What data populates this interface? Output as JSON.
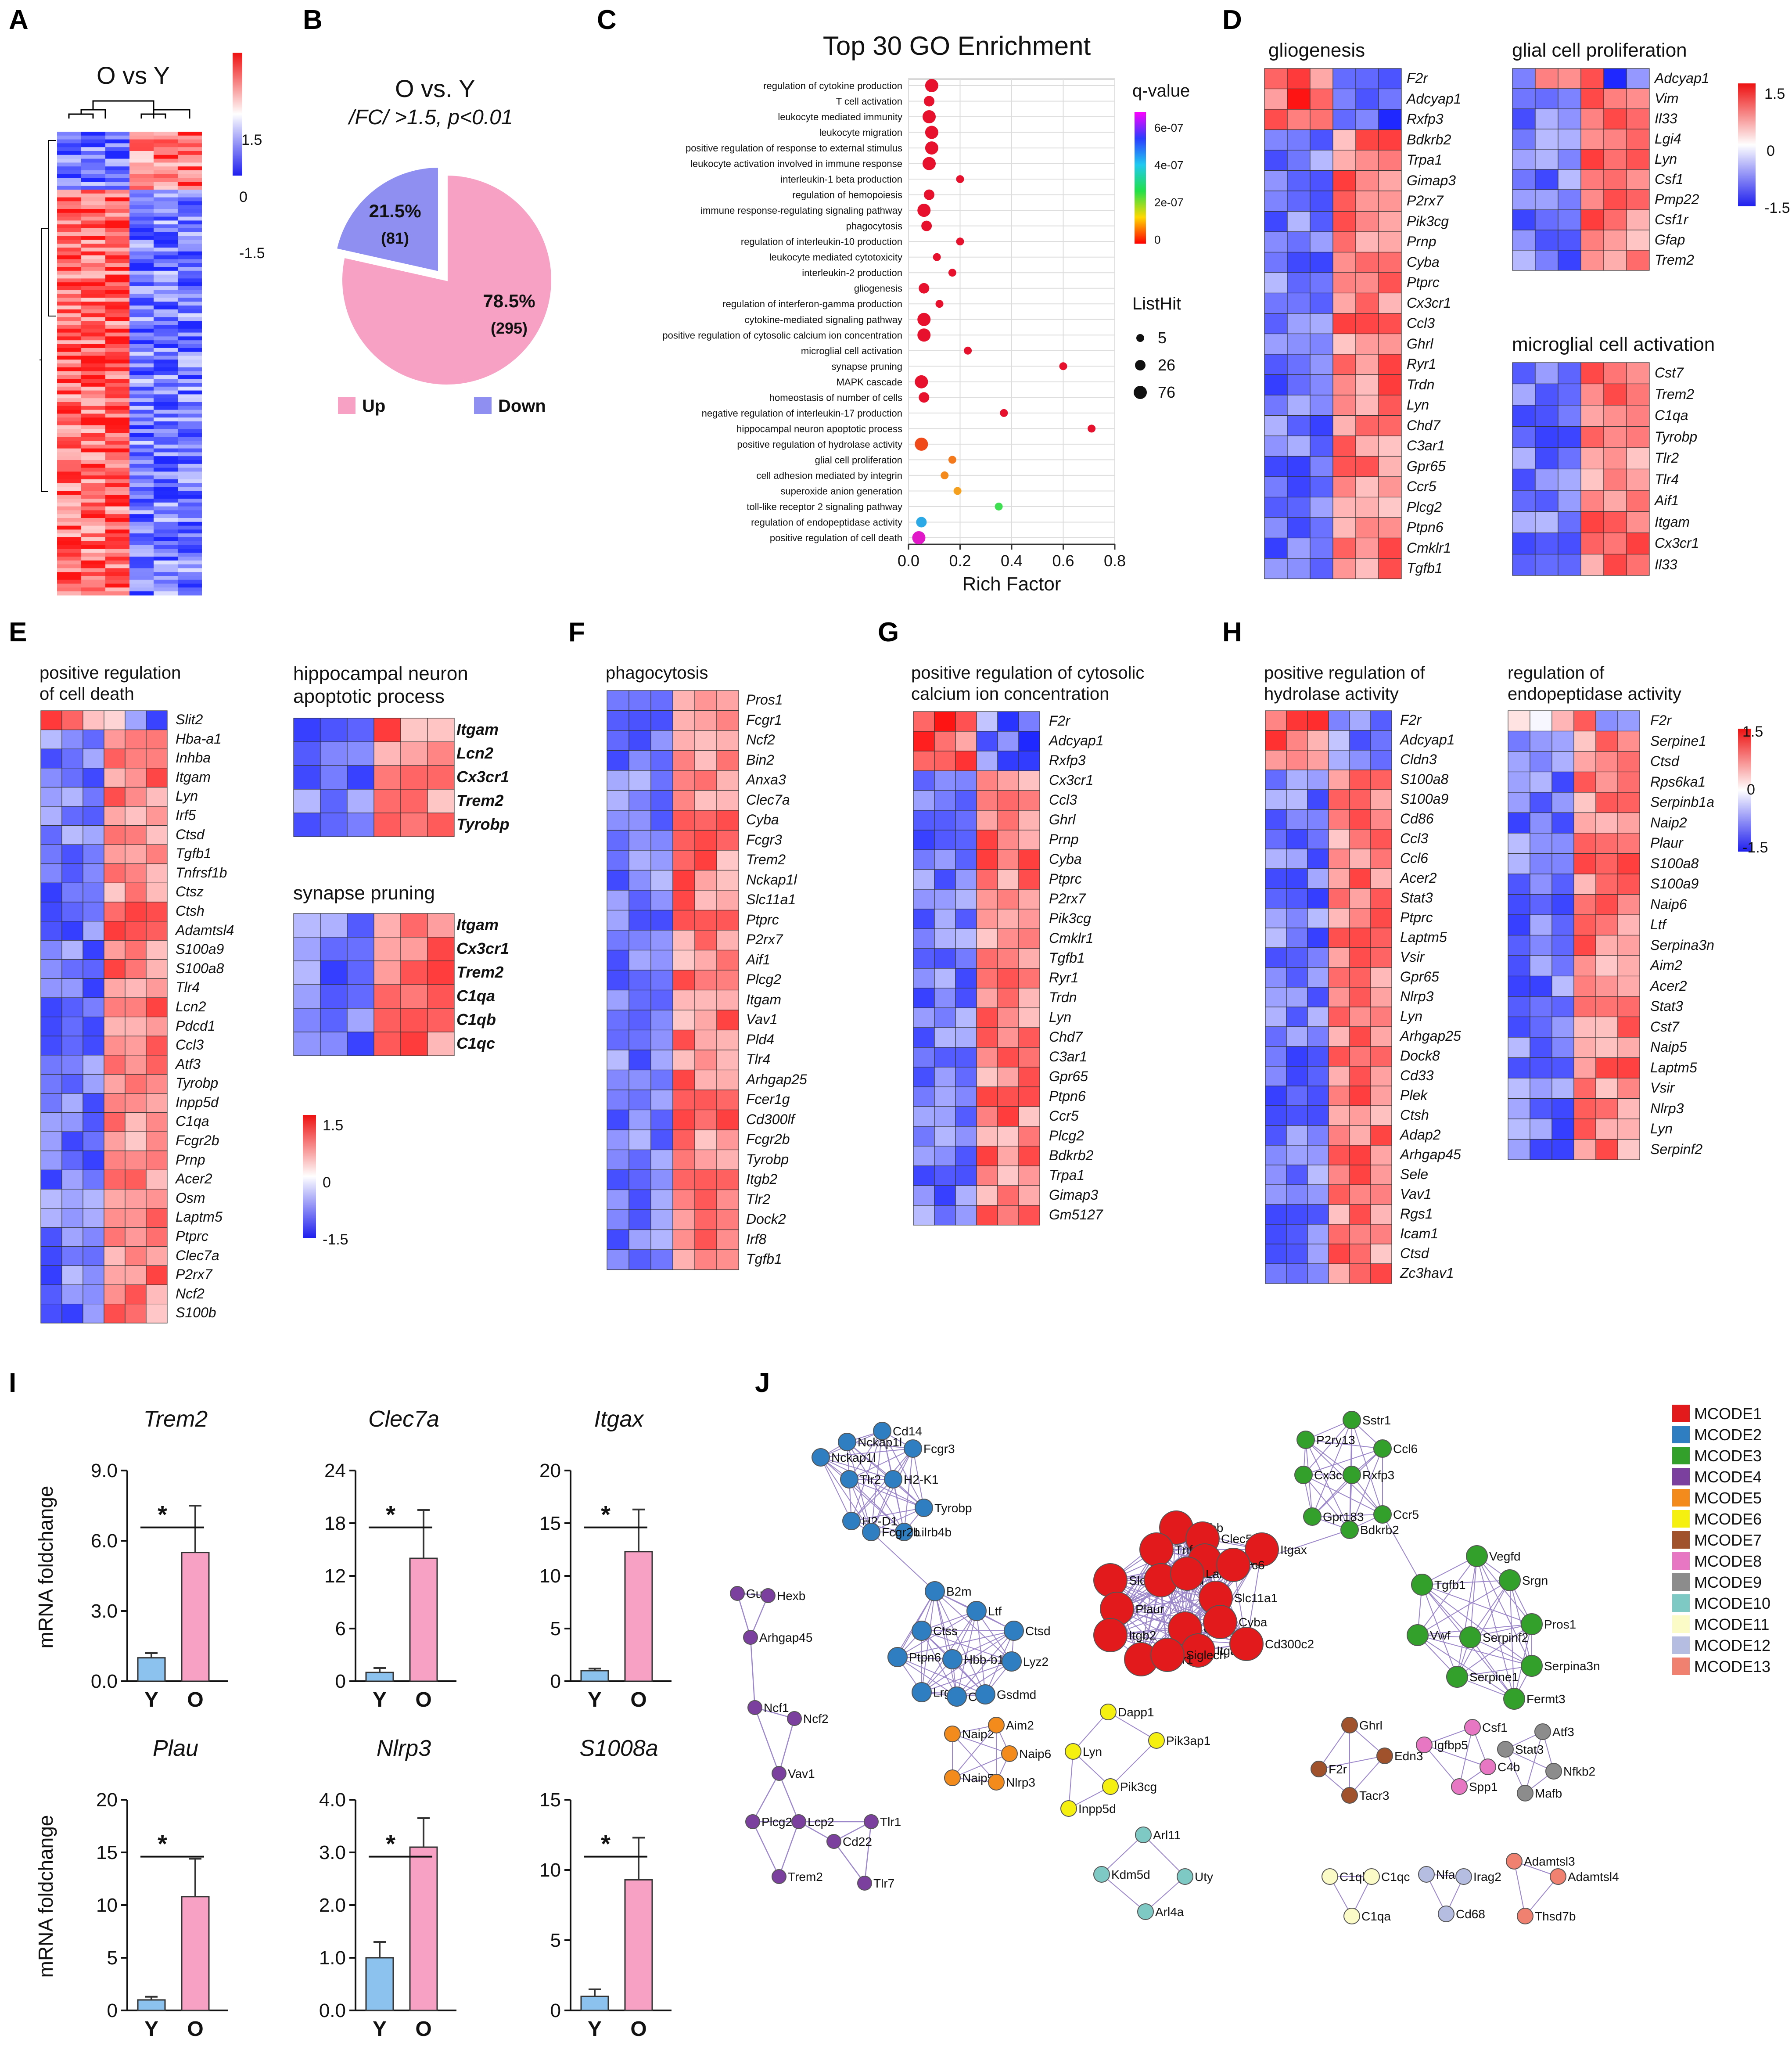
{
  "panel_labels": [
    "A",
    "B",
    "C",
    "D",
    "E",
    "F",
    "G",
    "H",
    "I",
    "J"
  ],
  "panel_a": {
    "title": "O vs Y",
    "scale": [
      "1.5",
      "0",
      "-1.5"
    ]
  },
  "panel_b": {
    "title": "O vs. Y",
    "subtitle": "/FC/ >1.5, p<0.01",
    "legend_up": "Up",
    "legend_down": "Down",
    "colors": {
      "up": "#f7a1c4",
      "down": "#8f8ff2"
    }
  },
  "chart_data": {
    "type": "scatter",
    "title": "Top 30 GO Enrichment",
    "xlabel": "Rich Factor",
    "xlim": [
      0,
      0.8
    ],
    "xticks": [
      "0.0",
      "0.2",
      "0.4",
      "0.6",
      "0.8"
    ],
    "color_legend_title": "q-value",
    "color_ticks": [
      "6e-07",
      "4e-07",
      "2e-07",
      "0"
    ],
    "size_legend_title": "ListHit",
    "size_legend": [
      "5",
      "26",
      "76"
    ],
    "categories": [
      "regulation of cytokine production",
      "T cell activation",
      "leukocyte mediated immunity",
      "leukocyte migration",
      "positive regulation of response to external stimulus",
      "leukocyte activation involved in immune response",
      "interleukin-1 beta production",
      "regulation of hemopoiesis",
      "immune response-regulating signaling pathway",
      "phagocytosis",
      "regulation of interleukin-10 production",
      "leukocyte mediated cytotoxicity",
      "interleukin-2 production",
      "gliogenesis",
      "regulation of interferon-gamma production",
      "cytokine-mediated signaling pathway",
      "positive regulation of cytosolic calcium ion concentration",
      "microglial cell activation",
      "synapse pruning",
      "MAPK cascade",
      "homeostasis of number of cells",
      "negative regulation of interleukin-17 production",
      "hippocampal neuron apoptotic process",
      "positive regulation of hydrolase activity",
      "glial cell proliferation",
      "cell adhesion mediated by integrin",
      "superoxide anion generation",
      "toll-like receptor 2 signaling pathway",
      "regulation of endopeptidase activity",
      "positive regulation of cell death"
    ],
    "series": [
      {
        "rich_factor": [
          0.09,
          0.08,
          0.08,
          0.09,
          0.09,
          0.08,
          0.2,
          0.08,
          0.06,
          0.07,
          0.2,
          0.11,
          0.17,
          0.06,
          0.12,
          0.06,
          0.06,
          0.23,
          0.6,
          0.05,
          0.06,
          0.37,
          0.71,
          0.05,
          0.17,
          0.14,
          0.19,
          0.35,
          0.05,
          0.04
        ],
        "colors": [
          "#e8112d",
          "#e8112d",
          "#e8112d",
          "#e8112d",
          "#e8112d",
          "#e8112d",
          "#e8112d",
          "#e8112d",
          "#e8112d",
          "#e8112d",
          "#e8112d",
          "#e8112d",
          "#e8112d",
          "#e8112d",
          "#e8112d",
          "#e8112d",
          "#e8112d",
          "#e8112d",
          "#e8112d",
          "#e8112d",
          "#e8112d",
          "#e8112d",
          "#e8112d",
          "#f04a1a",
          "#f4781c",
          "#f48a1c",
          "#f5a01e",
          "#3ee051",
          "#2aa9e6",
          "#e018c8"
        ],
        "sizes": [
          "lg",
          "md",
          "lg",
          "lg",
          "lg",
          "lg",
          "sm",
          "md",
          "lg",
          "md",
          "sm",
          "sm",
          "sm",
          "md",
          "sm",
          "lg",
          "lg",
          "sm",
          "sm",
          "lg",
          "md",
          "sm",
          "sm",
          "lg",
          "sm",
          "sm",
          "sm",
          "sm",
          "md",
          "lg"
        ]
      }
    ]
  },
  "panel_d": {
    "gliogenesis": {
      "title": "gliogenesis",
      "genes": [
        "F2r",
        "Adcyap1",
        "Rxfp3",
        "Bdkrb2",
        "Trpa1",
        "Gimap3",
        "P2rx7",
        "Pik3cg",
        "Prnp",
        "Cyba",
        "Ptprc",
        "Cx3cr1",
        "Ccl3",
        "Ghrl",
        "Ryr1",
        "Trdn",
        "Lyn",
        "Chd7",
        "C3ar1",
        "Gpr65",
        "Ccr5",
        "Plcg2",
        "Ptpn6",
        "Cmklr1",
        "Tgfb1"
      ]
    },
    "glial": {
      "title": "glial cell proliferation",
      "genes": [
        "Adcyap1",
        "Vim",
        "Il33",
        "Lgi4",
        "Lyn",
        "Csf1",
        "Pmp22",
        "Csf1r",
        "Gfap",
        "Trem2"
      ]
    },
    "microglial": {
      "title": "microglial cell activation",
      "genes": [
        "Cst7",
        "Trem2",
        "C1qa",
        "Tyrobp",
        "Tlr2",
        "Tlr4",
        "Aif1",
        "Itgam",
        "Cx3cr1",
        "Il33"
      ]
    },
    "scale": [
      "1.5",
      "0",
      "-1.5"
    ]
  },
  "panel_e": {
    "death": {
      "title_line1": "positive regulation",
      "title_line2": "of cell death",
      "genes": [
        "Slit2",
        "Hba-a1",
        "Inhba",
        "Itgam",
        "Lyn",
        "Irf5",
        "Ctsd",
        "Tgfb1",
        "Tnfrsf1b",
        "Ctsz",
        "Ctsh",
        "Adamtsl4",
        "S100a9",
        "S100a8",
        "Tlr4",
        "Lcn2",
        "Pdcd1",
        "Ccl3",
        "Atf3",
        "Tyrobp",
        "Inpp5d",
        "C1qa",
        "Fcgr2b",
        "Prnp",
        "Acer2",
        "Osm",
        "Laptm5",
        "Ptprc",
        "Clec7a",
        "P2rx7",
        "Ncf2",
        "S100b"
      ]
    },
    "hippo": {
      "title_line1": "hippocampal neuron",
      "title_line2": "apoptotic process",
      "genes": [
        "Itgam",
        "Lcn2",
        "Cx3cr1",
        "Trem2",
        "Tyrobp"
      ]
    },
    "synapse": {
      "title": "synapse pruning",
      "genes": [
        "Itgam",
        "Cx3cr1",
        "Trem2",
        "C1qa",
        "C1qb",
        "C1qc"
      ]
    },
    "scale": [
      "1.5",
      "0",
      "-1.5"
    ]
  },
  "panel_f": {
    "title": "phagocytosis",
    "genes": [
      "Pros1",
      "Fcgr1",
      "Ncf2",
      "Bin2",
      "Anxa3",
      "Clec7a",
      "Cyba",
      "Fcgr3",
      "Trem2",
      "Nckap1l",
      "Slc11a1",
      "Ptprc",
      "P2rx7",
      "Aif1",
      "Plcg2",
      "Itgam",
      "Vav1",
      "Pld4",
      "Tlr4",
      "Arhgap25",
      "Fcer1g",
      "Cd300lf",
      "Fcgr2b",
      "Tyrobp",
      "Itgb2",
      "Tlr2",
      "Dock2",
      "Irf8",
      "Tgfb1"
    ]
  },
  "panel_g": {
    "title_line1": "positive regulation of cytosolic",
    "title_line2": "calcium ion concentration",
    "genes": [
      "F2r",
      "Adcyap1",
      "Rxfp3",
      "Cx3cr1",
      "Ccl3",
      "Ghrl",
      "Prnp",
      "Cyba",
      "Ptprc",
      "P2rx7",
      "Pik3cg",
      "Cmklr1",
      "Tgfb1",
      "Ryr1",
      "Trdn",
      "Lyn",
      "Chd7",
      "C3ar1",
      "Gpr65",
      "Ptpn6",
      "Ccr5",
      "Plcg2",
      "Bdkrb2",
      "Trpa1",
      "Gimap3",
      "Gm5127"
    ]
  },
  "panel_h": {
    "hydrolase": {
      "title_line1": "positive regulation of",
      "title_line2": "hydrolase activity",
      "genes": [
        "F2r",
        "Adcyap1",
        "Cldn3",
        "S100a8",
        "S100a9",
        "Cd86",
        "Ccl3",
        "Ccl6",
        "Acer2",
        "Stat3",
        "Ptprc",
        "Laptm5",
        "Vsir",
        "Gpr65",
        "Nlrp3",
        "Lyn",
        "Arhgap25",
        "Dock8",
        "Cd33",
        "Plek",
        "Ctsh",
        "Adap2",
        "Arhgap45",
        "Sele",
        "Vav1",
        "Rgs1",
        "Icam1",
        "Ctsd",
        "Zc3hav1"
      ]
    },
    "endopep": {
      "title_line1": "regulation of",
      "title_line2": "endopeptidase activity",
      "genes": [
        "F2r",
        "Serpine1",
        "Ctsd",
        "Rps6ka1",
        "Serpinb1a",
        "Naip2",
        "Plaur",
        "S100a8",
        "S100a9",
        "Naip6",
        "Ltf",
        "Serpina3n",
        "Aim2",
        "Acer2",
        "Stat3",
        "Cst7",
        "Naip5",
        "Laptm5",
        "Vsir",
        "Nlrp3",
        "Lyn",
        "Serpinf2"
      ]
    },
    "scale": [
      "1.5",
      "0",
      "-1.5"
    ]
  },
  "panel_i": {
    "ylabel": "mRNA foldchange",
    "groups": [
      "Y",
      "O"
    ],
    "sig": "*",
    "colors": {
      "Y": "#8cc2ee",
      "O": "#f7a1c4"
    },
    "charts": [
      {
        "gene": "Trem2",
        "values": [
          1.0,
          5.5
        ],
        "errors": [
          0.2,
          2.0
        ],
        "ylim": [
          0,
          9
        ],
        "ticks": [
          "0.0",
          "3.0",
          "6.0",
          "9.0"
        ]
      },
      {
        "gene": "Clec7a",
        "values": [
          1.0,
          14.0
        ],
        "errors": [
          0.5,
          5.5
        ],
        "ylim": [
          0,
          24
        ],
        "ticks": [
          "0",
          "6",
          "12",
          "18",
          "24"
        ]
      },
      {
        "gene": "Itgax",
        "values": [
          1.0,
          12.3
        ],
        "errors": [
          0.2,
          4.0
        ],
        "ylim": [
          0,
          20
        ],
        "ticks": [
          "0",
          "5",
          "10",
          "15",
          "20"
        ]
      },
      {
        "gene": "Plau",
        "values": [
          1.0,
          10.8
        ],
        "errors": [
          0.3,
          3.6
        ],
        "ylim": [
          0,
          20
        ],
        "ticks": [
          "0",
          "5",
          "10",
          "15",
          "20"
        ]
      },
      {
        "gene": "Nlrp3",
        "values": [
          1.0,
          3.1
        ],
        "errors": [
          0.3,
          0.55
        ],
        "ylim": [
          0,
          4
        ],
        "ticks": [
          "0.0",
          "1.0",
          "2.0",
          "3.0",
          "4.0"
        ]
      },
      {
        "gene": "S1008a",
        "values": [
          1.0,
          9.3
        ],
        "errors": [
          0.5,
          3.0
        ],
        "ylim": [
          0,
          15
        ],
        "ticks": [
          "0",
          "5",
          "10",
          "15"
        ]
      }
    ]
  },
  "panel_j": {
    "legend": [
      {
        "label": "MCODE1",
        "color": "#e31a1c"
      },
      {
        "label": "MCODE2",
        "color": "#2f7ec1"
      },
      {
        "label": "MCODE3",
        "color": "#33a02c"
      },
      {
        "label": "MCODE4",
        "color": "#7b3f9e"
      },
      {
        "label": "MCODE5",
        "color": "#f28a1c"
      },
      {
        "label": "MCODE6",
        "color": "#f5f010"
      },
      {
        "label": "MCODE7",
        "color": "#a0522d"
      },
      {
        "label": "MCODE8",
        "color": "#e777c3"
      },
      {
        "label": "MCODE9",
        "color": "#8c8c8c"
      },
      {
        "label": "MCODE10",
        "color": "#7fc9c4"
      },
      {
        "label": "MCODE11",
        "color": "#fbfbc7"
      },
      {
        "label": "MCODE12",
        "color": "#b5bde0"
      },
      {
        "label": "MCODE13",
        "color": "#f08070"
      }
    ],
    "nodes": {
      "Cd14": "Cd14",
      "Nckap1l": "Nckap1l",
      "Fcgr3": "Fcgr3",
      "Tlr2": "Tlr2",
      "H2-K1": "H2-K1",
      "Tyrobp": "Tyrobp",
      "H2-D1": "H2-D1",
      "Lilrb4b": "Lilrb4b",
      "Fcgr2b": "Fcgr2b",
      "Sstr1": "Sstr1",
      "P2ry13": "P2ry13",
      "Ccl6": "Ccl6",
      "Cx3cr1": "Cx3cr1",
      "Rxfp3": "Rxfp3",
      "Ccr5": "Ccr5",
      "Gpr183": "Gpr183",
      "Bdkrb2": "Bdkrb2",
      "Cybb": "Cybb",
      "Clec5a": "Clec5a",
      "Tnfrsf1": "Tnfrsf1",
      "Fcer1g": "Fcer1g",
      "Itgax": "Itgax",
      "Slc2a": "Slc2a",
      "Plau": "Plau",
      "Laird": "Laird",
      "c6": "c6",
      "Plaur": "Plaur",
      "Slc11a1": "Slc11a1",
      "Itgb2": "Itgb2",
      "Cd53": "Cd53",
      "Cyba": "Cyba",
      "Itgam": "Itgam",
      "Cd300c2": "Cd300c2",
      "C3ar1": "C3ar1",
      "Siglech": "Siglech",
      "Vegfd": "Vegfd",
      "Srgn": "Srgn",
      "Tgfb1": "Tgfb1",
      "Pros1": "Pros1",
      "Vwf": "Vwf",
      "Serpinf2": "Serpinf2",
      "Serpina3n": "Serpina3n",
      "Serpine1": "Serpine1",
      "Fermt3": "Fermt3",
      "B2m": "B2m",
      "Ltf": "Ltf",
      "Ctss": "Ctss",
      "Ctsd": "Ctsd",
      "Ptpn6": "Ptpn6",
      "Hbb-b1": "Hbb-b1",
      "Lyz2": "Lyz2",
      "Lrg1": "Lrg1",
      "Ctsh": "Ctsh",
      "Gsdmd": "Gsdmd",
      "Gusb": "Gusb",
      "Hexb": "Hexb",
      "Arhgap45": "Arhgap45",
      "Ncf1": "Ncf1",
      "Ncf2": "Ncf2",
      "Vav1": "Vav1",
      "Plcg2": "Plcg2",
      "Lcp2": "Lcp2",
      "Tlr1": "Tlr1",
      "Cd22": "Cd22",
      "Trem2": "Trem2",
      "Tlr7": "Tlr7",
      "Naip2": "Naip2",
      "Aim2": "Aim2",
      "Naip6": "Naip6",
      "Naip5": "Naip5",
      "Nlrp3": "Nlrp3",
      "Dapp1": "Dapp1",
      "Lyn": "Lyn",
      "Pik3ap1": "Pik3ap1",
      "Pik3cg": "Pik3cg",
      "Inpp5d": "Inpp5d",
      "Ghrl": "Ghrl",
      "Edn3": "Edn3",
      "F2r": "F2r",
      "Tacr3": "Tacr3",
      "Csf1": "Csf1",
      "Igfbp5": "Igfbp5",
      "C4b": "C4b",
      "Spp1": "Spp1",
      "Atf3": "Atf3",
      "Stat3": "Stat3",
      "Nfkb2": "Nfkb2",
      "Mafb": "Mafb",
      "Arl11": "Arl11",
      "Kdm5d": "Kdm5d",
      "Uty": "Uty",
      "Arl4a": "Arl4a",
      "C1qb": "C1qb",
      "C1qc": "C1qc",
      "C1qa": "C1qa",
      "Nfam1": "Nfam1",
      "Irag2": "Irag2",
      "Cd68": "Cd68",
      "Adamtsl3": "Adamtsl3",
      "Adamtsl4": "Adamtsl4",
      "Thsd7b": "Thsd7b"
    }
  }
}
